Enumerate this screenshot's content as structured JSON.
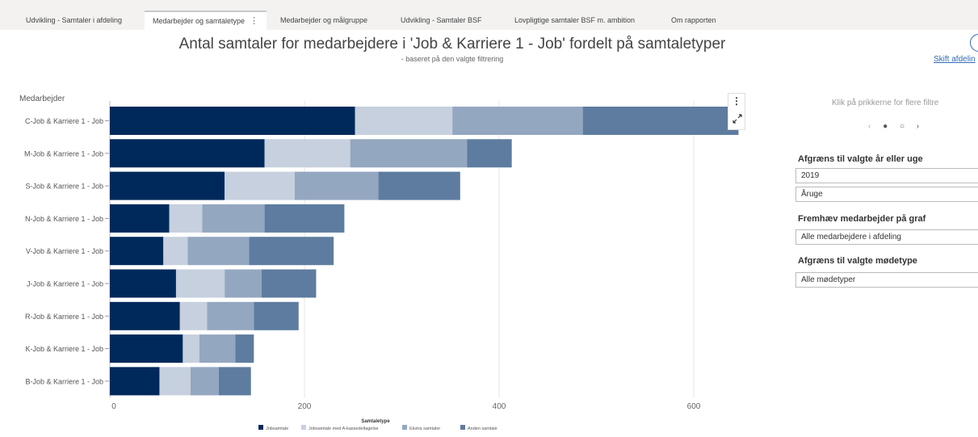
{
  "tabs": [
    {
      "label": "Udvikling - Samtaler i afdeling"
    },
    {
      "label": "Medarbejder og samtaletype",
      "active": true,
      "more": "⋮"
    },
    {
      "label": "Medarbejder og målgruppe"
    },
    {
      "label": "Udvikling - Samtaler BSF"
    },
    {
      "label": "Lovpligtige samtaler BSF m. ambition"
    },
    {
      "label": "Om rapporten"
    }
  ],
  "report": {
    "title": "Antal samtaler for medarbejdere i 'Job & Karriere 1 - Job' fordelt på samtaletyper",
    "subtitle": "- baseret på den valgte filtrering",
    "switch_link": "Skift afdelin"
  },
  "visual_menu": {
    "dots": "⋮",
    "icon": "expand-icon"
  },
  "filters": {
    "hint": "Klik på prikkerne for flere filtre",
    "pager": {
      "prev": "‹",
      "dot_active": "●",
      "dot_inactive": "○",
      "next": "›"
    },
    "section1_title": "Afgræns til valgte år eller uge",
    "year_value": "2019",
    "week_value": "Åruge",
    "section2_title": "Fremhæv medarbejder på graf",
    "employee_value": "Alle medarbejdere i afdeling",
    "section3_title": "Afgræns til valgte mødetype",
    "meeting_value": "Alle mødetyper"
  },
  "colors": [
    "#00295b",
    "#c6d0de",
    "#94a7c0",
    "#5e7c9f"
  ],
  "chart_data": {
    "type": "bar",
    "orientation": "horizontal",
    "stacked": true,
    "ylabel": "Medarbejder",
    "categories": [
      "C-Job & Karriere 1 - Job",
      "M-Job & Karriere 1 - Job",
      "S-Job & Karriere 1 - Job",
      "N-Job & Karriere 1 - Job",
      "V-Job & Karriere 1 - Job",
      "J-Job & Karriere 1 - Job",
      "R-Job & Karriere 1 - Job",
      "K-Job & Karriere 1 - Job",
      "B-Job & Karriere 1 - Job"
    ],
    "series": [
      {
        "name": "Jobsamtale",
        "values": [
          252,
          159,
          118,
          61,
          55,
          68,
          72,
          75,
          51
        ]
      },
      {
        "name": "Jobsamtale med A-kassedeltagelse",
        "values": [
          100,
          88,
          72,
          34,
          25,
          50,
          28,
          17,
          32
        ]
      },
      {
        "name": "Ekstra samtaler",
        "values": [
          134,
          120,
          86,
          64,
          63,
          38,
          48,
          37,
          29
        ]
      },
      {
        "name": "Anden samtale",
        "values": [
          160,
          46,
          84,
          82,
          87,
          56,
          46,
          19,
          33
        ]
      }
    ],
    "xlim": [
      0,
      650
    ],
    "xticks": [
      0,
      200,
      400,
      600
    ],
    "legend_title": "Samtaletype",
    "legend_position": "bottom",
    "grid": true
  }
}
